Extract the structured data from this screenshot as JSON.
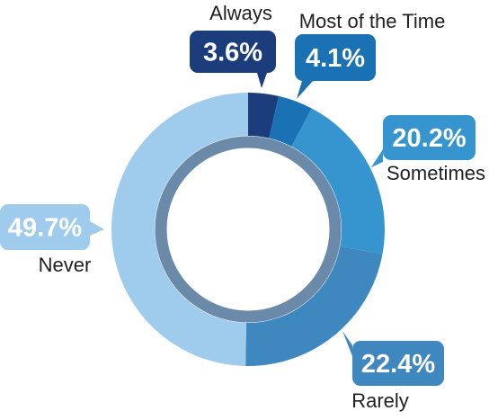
{
  "chart_data": {
    "type": "pie",
    "variant": "donut",
    "categories": [
      "Always",
      "Most of the Time",
      "Sometimes",
      "Rarely",
      "Never"
    ],
    "values": [
      3.6,
      4.1,
      20.2,
      22.4,
      49.7
    ],
    "value_labels": [
      "3.6%",
      "4.1%",
      "20.2%",
      "22.4%",
      "49.7%"
    ],
    "colors": [
      "#1b3d7c",
      "#1a72b4",
      "#3695cf",
      "#3f87bf",
      "#9fcbec"
    ],
    "label_box_colors": [
      "#1b3d7c",
      "#1a72b4",
      "#3695cf",
      "#3f87bf",
      "#9fcbec"
    ],
    "inner_ring_color": "#6b89a8",
    "legend": "none",
    "start_angle": "12 o'clock",
    "direction": "clockwise"
  }
}
